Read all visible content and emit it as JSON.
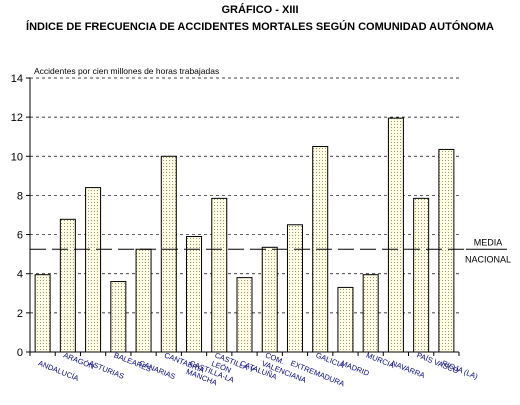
{
  "title": "GRÁFICO - XIII",
  "subtitle": "ÍNDICE DE FRECUENCIA DE ACCIDENTES MORTALES SEGÚN COMUNIDAD AUTÓNOMA",
  "chart_data": {
    "type": "bar",
    "title": "GRÁFICO - XIII",
    "subtitle": "ÍNDICE DE FRECUENCIA DE ACCIDENTES MORTALES SEGÚN COMUNIDAD AUTÓNOMA",
    "ylabel": "Accidentes por cien millones de horas trabajadas",
    "xlabel": "",
    "ylim": [
      0,
      14
    ],
    "yticks": [
      0,
      2,
      4,
      6,
      8,
      10,
      12,
      14
    ],
    "grid": true,
    "categories": [
      "ANDALUCÍA",
      "ARAGÓN",
      "ASTURIAS",
      "BALEARES",
      "CANARIAS",
      "CANTABRIA",
      "CASTILLA-LA MANCHA",
      "CASTILLA Y LEÓN",
      "CATALUÑA",
      "COM. VALENCIANA",
      "EXTREMADURA",
      "GALICIA",
      "MADRID",
      "MURCIA",
      "NAVARRA",
      "PAÍS VASCO",
      "RIOJA (LA)"
    ],
    "values": [
      3.95,
      6.78,
      8.4,
      3.6,
      5.25,
      10.0,
      5.9,
      7.85,
      3.8,
      5.35,
      6.5,
      10.5,
      3.3,
      3.95,
      11.95,
      7.85,
      10.35
    ],
    "reference_line": {
      "value": 5.25,
      "label_top": "MEDIA",
      "label_bottom": "NACIONAL",
      "style": "long-dash"
    },
    "bar_fill": "dotted-pattern",
    "colors": {
      "bar_fill": "#fffde6",
      "bar_dots": "#9a9a6a",
      "category_labels": "#000080"
    }
  }
}
